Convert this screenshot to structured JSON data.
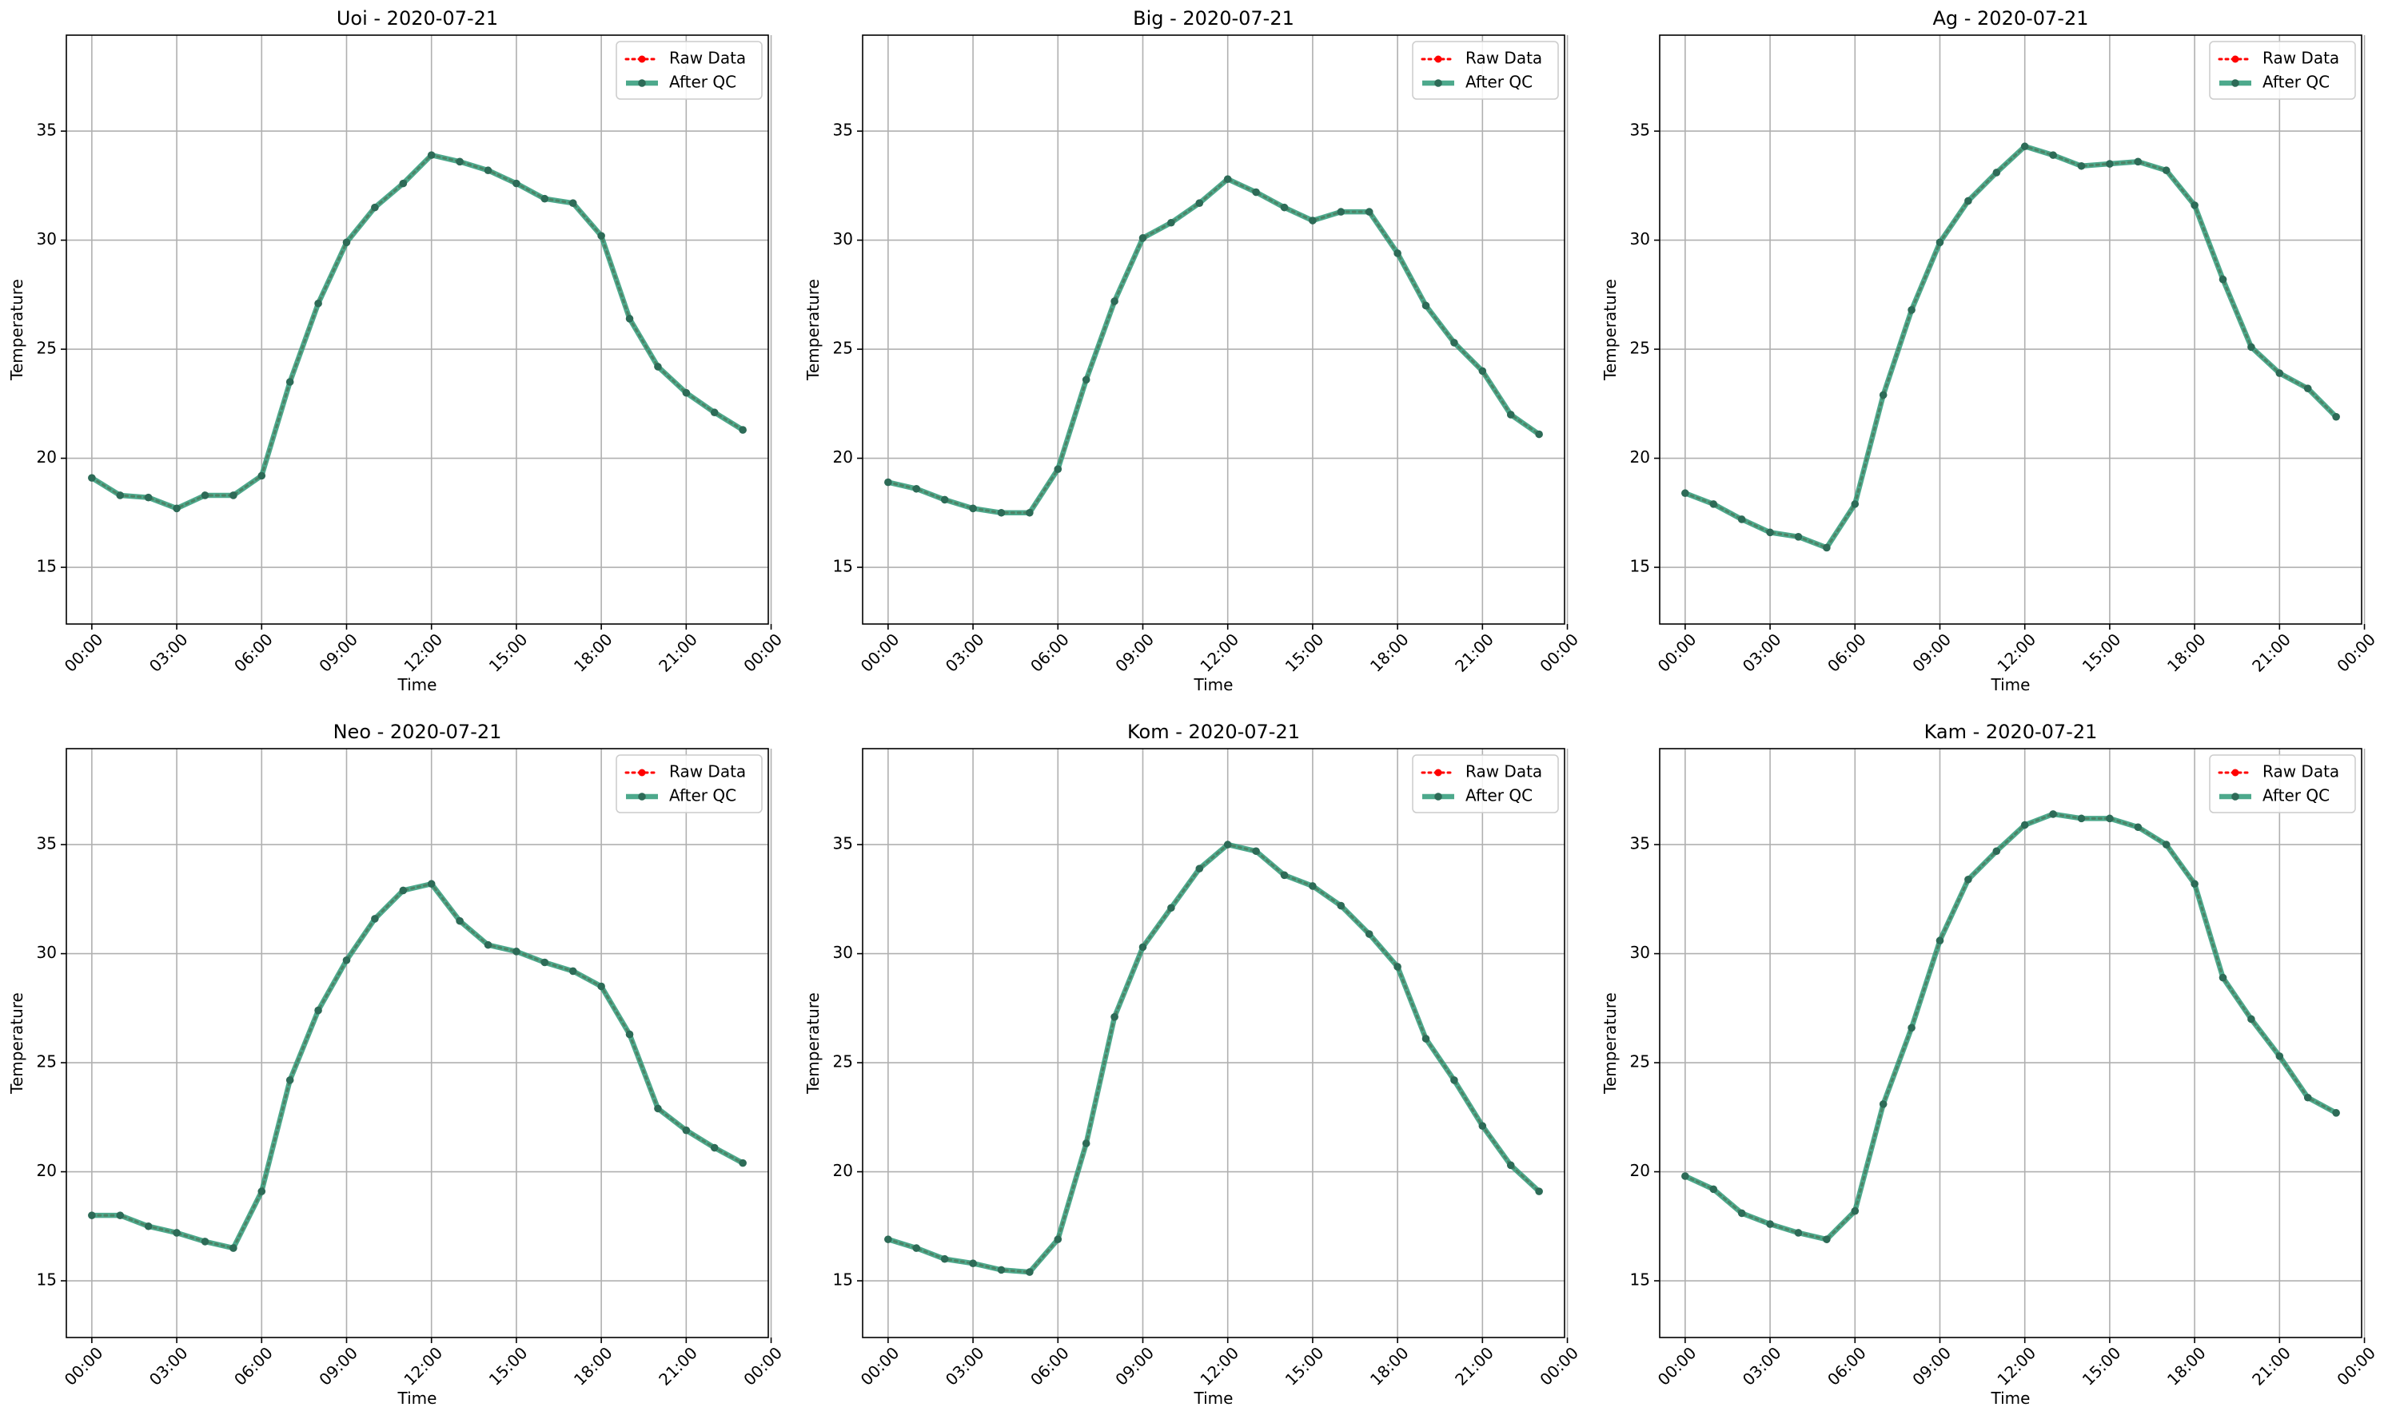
{
  "figure": {
    "background": "#ffffff",
    "grid_color": "#b0b0b0",
    "raw_color": "#ff0000",
    "qc_color": "#2e9a78",
    "qc_marker_color": "#2d6b57"
  },
  "chart_data": [
    {
      "type": "line",
      "title": "Uoi - 2020-07-21",
      "xlabel": "Time",
      "ylabel": "Temperature",
      "x_unit": "hours",
      "xlim": [
        -0.9,
        23.9
      ],
      "ylim": [
        12.4,
        39.4
      ],
      "xticks": [
        0,
        3,
        6,
        9,
        12,
        15,
        18,
        21,
        24
      ],
      "xtick_labels": [
        "00:00",
        "03:00",
        "06:00",
        "09:00",
        "12:00",
        "15:00",
        "18:00",
        "21:00",
        "00:00"
      ],
      "yticks": [
        15,
        20,
        25,
        30,
        35
      ],
      "ytick_labels": [
        "15",
        "20",
        "25",
        "30",
        "35"
      ],
      "grid": true,
      "legend_position": "top-right",
      "x": [
        0,
        1,
        2,
        3,
        4,
        5,
        6,
        7,
        8,
        9,
        10,
        11,
        12,
        13,
        14,
        15,
        16,
        17,
        18,
        19,
        20,
        21,
        22,
        23
      ],
      "series": [
        {
          "name": "Raw Data",
          "values": [
            19.1,
            18.3,
            18.2,
            17.7,
            18.3,
            18.3,
            19.2,
            23.5,
            27.1,
            29.9,
            31.5,
            32.6,
            33.9,
            33.6,
            33.2,
            32.6,
            31.9,
            31.7,
            30.2,
            26.4,
            24.2,
            23.0,
            22.1,
            21.3
          ]
        },
        {
          "name": "After QC",
          "values": [
            19.1,
            18.3,
            18.2,
            17.7,
            18.3,
            18.3,
            19.2,
            23.5,
            27.1,
            29.9,
            31.5,
            32.6,
            33.9,
            33.6,
            33.2,
            32.6,
            31.9,
            31.7,
            30.2,
            26.4,
            24.2,
            23.0,
            22.1,
            21.3
          ]
        }
      ]
    },
    {
      "type": "line",
      "title": "Big - 2020-07-21",
      "xlabel": "Time",
      "ylabel": "Temperature",
      "x_unit": "hours",
      "xlim": [
        -0.9,
        23.9
      ],
      "ylim": [
        12.4,
        39.4
      ],
      "xticks": [
        0,
        3,
        6,
        9,
        12,
        15,
        18,
        21,
        24
      ],
      "xtick_labels": [
        "00:00",
        "03:00",
        "06:00",
        "09:00",
        "12:00",
        "15:00",
        "18:00",
        "21:00",
        "00:00"
      ],
      "yticks": [
        15,
        20,
        25,
        30,
        35
      ],
      "ytick_labels": [
        "15",
        "20",
        "25",
        "30",
        "35"
      ],
      "grid": true,
      "legend_position": "top-right",
      "x": [
        0,
        1,
        2,
        3,
        4,
        5,
        6,
        7,
        8,
        9,
        10,
        11,
        12,
        13,
        14,
        15,
        16,
        17,
        18,
        19,
        20,
        21,
        22,
        23
      ],
      "series": [
        {
          "name": "Raw Data",
          "values": [
            18.9,
            18.6,
            18.1,
            17.7,
            17.5,
            17.5,
            19.5,
            23.6,
            27.2,
            30.1,
            30.8,
            31.7,
            32.8,
            32.2,
            31.5,
            30.9,
            31.3,
            31.3,
            29.4,
            27.0,
            25.3,
            24.0,
            22.0,
            21.1
          ]
        },
        {
          "name": "After QC",
          "values": [
            18.9,
            18.6,
            18.1,
            17.7,
            17.5,
            17.5,
            19.5,
            23.6,
            27.2,
            30.1,
            30.8,
            31.7,
            32.8,
            32.2,
            31.5,
            30.9,
            31.3,
            31.3,
            29.4,
            27.0,
            25.3,
            24.0,
            22.0,
            21.1
          ]
        }
      ]
    },
    {
      "type": "line",
      "title": "Ag - 2020-07-21",
      "xlabel": "Time",
      "ylabel": "Temperature",
      "x_unit": "hours",
      "xlim": [
        -0.9,
        23.9
      ],
      "ylim": [
        12.4,
        39.4
      ],
      "xticks": [
        0,
        3,
        6,
        9,
        12,
        15,
        18,
        21,
        24
      ],
      "xtick_labels": [
        "00:00",
        "03:00",
        "06:00",
        "09:00",
        "12:00",
        "15:00",
        "18:00",
        "21:00",
        "00:00"
      ],
      "yticks": [
        15,
        20,
        25,
        30,
        35
      ],
      "ytick_labels": [
        "15",
        "20",
        "25",
        "30",
        "35"
      ],
      "grid": true,
      "legend_position": "top-right",
      "x": [
        0,
        1,
        2,
        3,
        4,
        5,
        6,
        7,
        8,
        9,
        10,
        11,
        12,
        13,
        14,
        15,
        16,
        17,
        18,
        19,
        20,
        21,
        22,
        23
      ],
      "series": [
        {
          "name": "Raw Data",
          "values": [
            18.4,
            17.9,
            17.2,
            16.6,
            16.4,
            15.9,
            17.9,
            22.9,
            26.8,
            29.9,
            31.8,
            33.1,
            34.3,
            33.9,
            33.4,
            33.5,
            33.6,
            33.2,
            31.6,
            28.2,
            25.1,
            23.9,
            23.2,
            21.9
          ]
        },
        {
          "name": "After QC",
          "values": [
            18.4,
            17.9,
            17.2,
            16.6,
            16.4,
            15.9,
            17.9,
            22.9,
            26.8,
            29.9,
            31.8,
            33.1,
            34.3,
            33.9,
            33.4,
            33.5,
            33.6,
            33.2,
            31.6,
            28.2,
            25.1,
            23.9,
            23.2,
            21.9
          ]
        }
      ]
    },
    {
      "type": "line",
      "title": "Neo - 2020-07-21",
      "xlabel": "Time",
      "ylabel": "Temperature",
      "x_unit": "hours",
      "xlim": [
        -0.9,
        23.9
      ],
      "ylim": [
        12.4,
        39.4
      ],
      "xticks": [
        0,
        3,
        6,
        9,
        12,
        15,
        18,
        21,
        24
      ],
      "xtick_labels": [
        "00:00",
        "03:00",
        "06:00",
        "09:00",
        "12:00",
        "15:00",
        "18:00",
        "21:00",
        "00:00"
      ],
      "yticks": [
        15,
        20,
        25,
        30,
        35
      ],
      "ytick_labels": [
        "15",
        "20",
        "25",
        "30",
        "35"
      ],
      "grid": true,
      "legend_position": "top-right",
      "x": [
        0,
        1,
        2,
        3,
        4,
        5,
        6,
        7,
        8,
        9,
        10,
        11,
        12,
        13,
        14,
        15,
        16,
        17,
        18,
        19,
        20,
        21,
        22,
        23
      ],
      "series": [
        {
          "name": "Raw Data",
          "values": [
            18.0,
            18.0,
            17.5,
            17.2,
            16.8,
            16.5,
            19.1,
            24.2,
            27.4,
            29.7,
            31.6,
            32.9,
            33.2,
            31.5,
            30.4,
            30.1,
            29.6,
            29.2,
            28.5,
            26.3,
            22.9,
            21.9,
            21.1,
            20.4
          ]
        },
        {
          "name": "After QC",
          "values": [
            18.0,
            18.0,
            17.5,
            17.2,
            16.8,
            16.5,
            19.1,
            24.2,
            27.4,
            29.7,
            31.6,
            32.9,
            33.2,
            31.5,
            30.4,
            30.1,
            29.6,
            29.2,
            28.5,
            26.3,
            22.9,
            21.9,
            21.1,
            20.4
          ]
        }
      ]
    },
    {
      "type": "line",
      "title": "Kom - 2020-07-21",
      "xlabel": "Time",
      "ylabel": "Temperature",
      "x_unit": "hours",
      "xlim": [
        -0.9,
        23.9
      ],
      "ylim": [
        12.4,
        39.4
      ],
      "xticks": [
        0,
        3,
        6,
        9,
        12,
        15,
        18,
        21,
        24
      ],
      "xtick_labels": [
        "00:00",
        "03:00",
        "06:00",
        "09:00",
        "12:00",
        "15:00",
        "18:00",
        "21:00",
        "00:00"
      ],
      "yticks": [
        15,
        20,
        25,
        30,
        35
      ],
      "ytick_labels": [
        "15",
        "20",
        "25",
        "30",
        "35"
      ],
      "grid": true,
      "legend_position": "top-right",
      "x": [
        0,
        1,
        2,
        3,
        4,
        5,
        6,
        7,
        8,
        9,
        10,
        11,
        12,
        13,
        14,
        15,
        16,
        17,
        18,
        19,
        20,
        21,
        22,
        23
      ],
      "series": [
        {
          "name": "Raw Data",
          "values": [
            16.9,
            16.5,
            16.0,
            15.8,
            15.5,
            15.4,
            16.9,
            21.3,
            27.1,
            30.3,
            32.1,
            33.9,
            35.0,
            34.7,
            33.6,
            33.1,
            32.2,
            30.9,
            29.4,
            26.1,
            24.2,
            22.1,
            20.3,
            19.1
          ]
        },
        {
          "name": "After QC",
          "values": [
            16.9,
            16.5,
            16.0,
            15.8,
            15.5,
            15.4,
            16.9,
            21.3,
            27.1,
            30.3,
            32.1,
            33.9,
            35.0,
            34.7,
            33.6,
            33.1,
            32.2,
            30.9,
            29.4,
            26.1,
            24.2,
            22.1,
            20.3,
            19.1
          ]
        }
      ]
    },
    {
      "type": "line",
      "title": "Kam - 2020-07-21",
      "xlabel": "Time",
      "ylabel": "Temperature",
      "x_unit": "hours",
      "xlim": [
        -0.9,
        23.9
      ],
      "ylim": [
        12.4,
        39.4
      ],
      "xticks": [
        0,
        3,
        6,
        9,
        12,
        15,
        18,
        21,
        24
      ],
      "xtick_labels": [
        "00:00",
        "03:00",
        "06:00",
        "09:00",
        "12:00",
        "15:00",
        "18:00",
        "21:00",
        "00:00"
      ],
      "yticks": [
        15,
        20,
        25,
        30,
        35
      ],
      "ytick_labels": [
        "15",
        "20",
        "25",
        "30",
        "35"
      ],
      "grid": true,
      "legend_position": "top-right",
      "x": [
        0,
        1,
        2,
        3,
        4,
        5,
        6,
        7,
        8,
        9,
        10,
        11,
        12,
        13,
        14,
        15,
        16,
        17,
        18,
        19,
        20,
        21,
        22,
        23
      ],
      "series": [
        {
          "name": "Raw Data",
          "values": [
            19.8,
            19.2,
            18.1,
            17.6,
            17.2,
            16.9,
            18.2,
            23.1,
            26.6,
            30.6,
            33.4,
            34.7,
            35.9,
            36.4,
            36.2,
            36.2,
            35.8,
            35.0,
            33.2,
            28.9,
            27.0,
            25.3,
            23.4,
            22.7
          ]
        },
        {
          "name": "After QC",
          "values": [
            19.8,
            19.2,
            18.1,
            17.6,
            17.2,
            16.9,
            18.2,
            23.1,
            26.6,
            30.6,
            33.4,
            34.7,
            35.9,
            36.4,
            36.2,
            36.2,
            35.8,
            35.0,
            33.2,
            28.9,
            27.0,
            25.3,
            23.4,
            22.7
          ]
        }
      ]
    }
  ]
}
